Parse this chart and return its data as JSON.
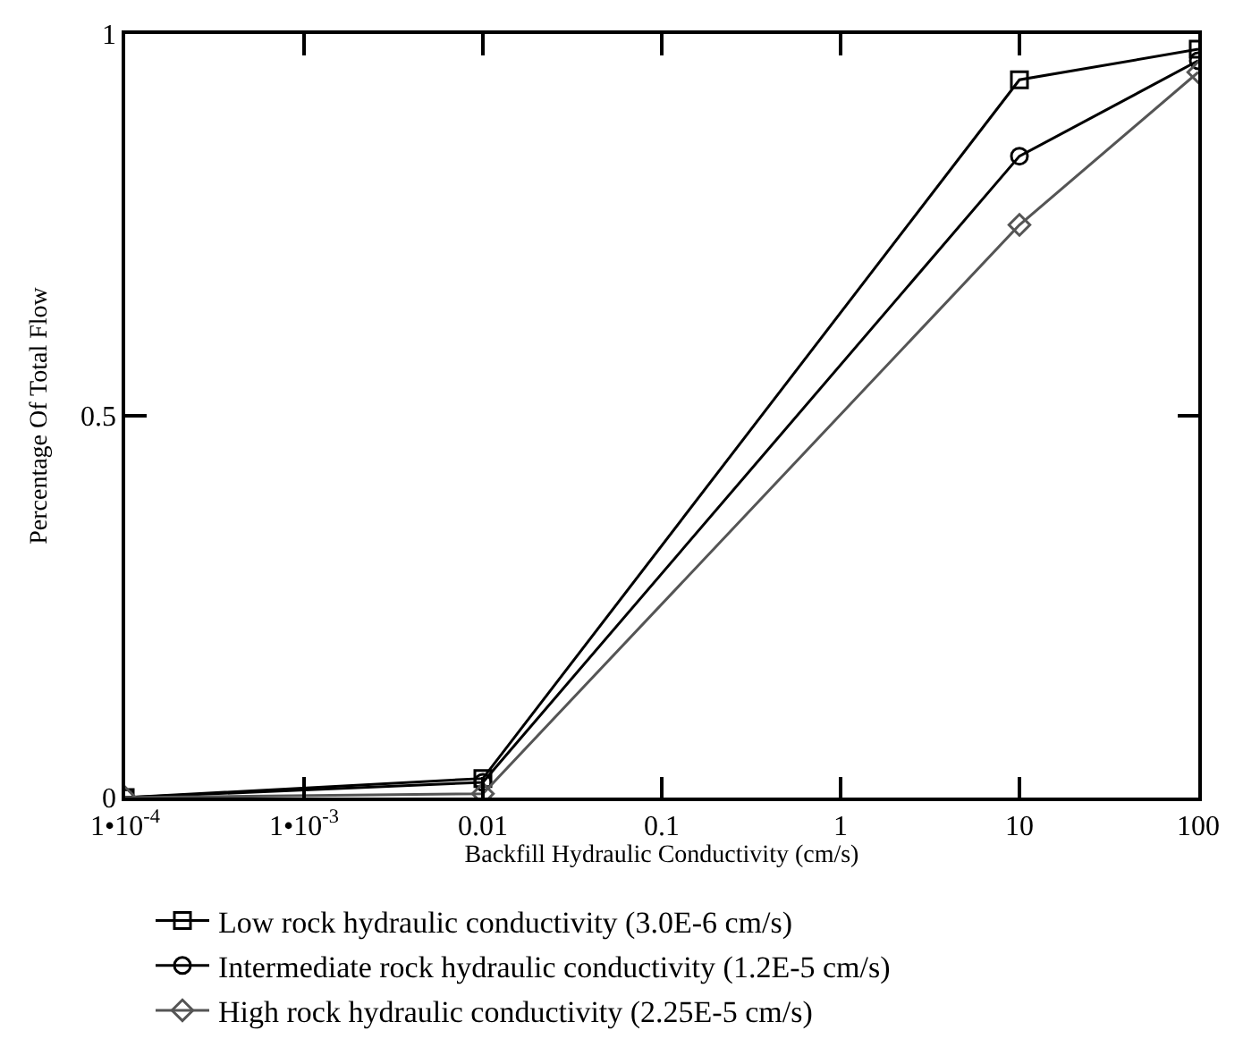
{
  "chart_data": {
    "type": "line",
    "xlabel": "Backfill Hydraulic Conductivity (cm/s)",
    "ylabel": "Percentage Of Total Flow",
    "x": [
      0.0001,
      0.01,
      10,
      100
    ],
    "series": [
      {
        "name": "Low rock hydraulic conductivity (3.0E-6 cm/s)",
        "color": "#000000",
        "marker": "square",
        "values": [
          0,
          0.025,
          0.94,
          0.98
        ]
      },
      {
        "name": "Intermediate rock hydraulic conductivity (1.2E-5 cm/s)",
        "color": "#000000",
        "marker": "circle",
        "values": [
          0,
          0.02,
          0.84,
          0.965
        ]
      },
      {
        "name": "High rock hydraulic conductivity (2.25E-5 cm/s)",
        "color": "#555555",
        "marker": "diamond",
        "values": [
          0,
          0.005,
          0.75,
          0.95
        ]
      }
    ],
    "log": "x",
    "xlim": [
      0.0001,
      100
    ],
    "xticks": [
      {
        "value": 0.0001,
        "label": "1•10$^{-4}$"
      },
      {
        "value": 0.001,
        "label": "1•10$^{-3}$"
      },
      0.01,
      0.1,
      1,
      10,
      100
    ],
    "ylim": [
      0,
      1
    ],
    "yticks": [
      0,
      0.5,
      1
    ],
    "legend": "bottom",
    "line_style": "solid"
  }
}
